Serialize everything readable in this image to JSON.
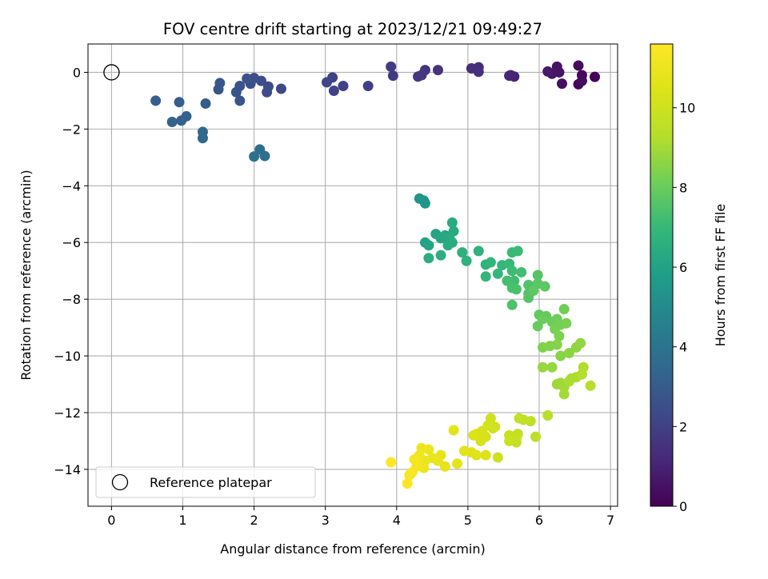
{
  "chart_data": {
    "type": "scatter",
    "title": "FOV centre drift starting at 2023/12/21 09:49:27",
    "xlabel": "Angular distance from reference (arcmin)",
    "ylabel": "Rotation from reference (arcmin)",
    "xlim": [
      -0.33,
      7.1
    ],
    "ylim": [
      -15.3,
      1.0
    ],
    "xticks": [
      0,
      1,
      2,
      3,
      4,
      5,
      6,
      7
    ],
    "yticks": [
      -14,
      -12,
      -10,
      -8,
      -6,
      -4,
      -2,
      0
    ],
    "grid": true,
    "colormap": "viridis",
    "colorbar": {
      "label": "Hours from first FF file",
      "range": [
        0,
        11.6
      ],
      "ticks": [
        0,
        2,
        4,
        6,
        8,
        10
      ]
    },
    "legend": {
      "placement": "lower-left",
      "entries": [
        "Reference platepar"
      ]
    },
    "reference_point": {
      "x": 0,
      "y": 0
    },
    "points": [
      [
        6.78,
        -0.16,
        0.1
      ],
      [
        6.6,
        -0.1,
        0.2
      ],
      [
        6.55,
        -0.42,
        0.25
      ],
      [
        6.55,
        0.24,
        0.3
      ],
      [
        6.6,
        -0.3,
        0.35
      ],
      [
        6.32,
        -0.4,
        0.45
      ],
      [
        6.25,
        0.2,
        0.5
      ],
      [
        6.28,
        0.0,
        0.55
      ],
      [
        6.18,
        -0.05,
        0.6
      ],
      [
        6.12,
        0.03,
        0.7
      ],
      [
        5.65,
        -0.15,
        1.0
      ],
      [
        5.58,
        -0.12,
        1.05
      ],
      [
        5.6,
        -0.1,
        1.1
      ],
      [
        5.15,
        0.18,
        1.3
      ],
      [
        5.05,
        0.14,
        1.35
      ],
      [
        5.15,
        0.02,
        1.4
      ],
      [
        4.58,
        0.08,
        1.55
      ],
      [
        4.4,
        0.08,
        1.6
      ],
      [
        4.35,
        -0.1,
        1.65
      ],
      [
        4.3,
        -0.15,
        1.7
      ],
      [
        3.95,
        -0.12,
        1.8
      ],
      [
        3.92,
        0.2,
        1.85
      ],
      [
        3.6,
        -0.48,
        1.95
      ],
      [
        3.25,
        -0.48,
        2.0
      ],
      [
        3.1,
        -0.18,
        2.05
      ],
      [
        3.12,
        -0.65,
        2.1
      ],
      [
        3.02,
        -0.35,
        2.15
      ],
      [
        2.38,
        -0.58,
        2.3
      ],
      [
        2.2,
        -0.5,
        2.35
      ],
      [
        2.18,
        -0.7,
        2.4
      ],
      [
        2.1,
        -0.3,
        2.45
      ],
      [
        2.0,
        -0.2,
        2.5
      ],
      [
        1.95,
        -0.4,
        2.55
      ],
      [
        1.9,
        -0.22,
        2.6
      ],
      [
        1.8,
        -0.48,
        2.65
      ],
      [
        1.75,
        -0.7,
        2.7
      ],
      [
        1.8,
        -1.0,
        2.75
      ],
      [
        1.5,
        -0.6,
        2.8
      ],
      [
        1.52,
        -0.38,
        2.85
      ],
      [
        1.32,
        -1.1,
        3.0
      ],
      [
        0.95,
        -1.05,
        3.1
      ],
      [
        0.62,
        -1.0,
        3.15
      ],
      [
        0.98,
        -1.7,
        3.2
      ],
      [
        1.05,
        -1.55,
        3.25
      ],
      [
        0.85,
        -1.75,
        3.3
      ],
      [
        1.28,
        -2.1,
        3.5
      ],
      [
        1.28,
        -2.32,
        3.55
      ],
      [
        2.08,
        -2.72,
        3.7
      ],
      [
        2.15,
        -2.95,
        3.75
      ],
      [
        2.0,
        -2.97,
        3.8
      ],
      [
        4.32,
        -4.45,
        5.4
      ],
      [
        4.38,
        -4.52,
        5.45
      ],
      [
        4.4,
        -4.62,
        5.5
      ],
      [
        4.4,
        -6.0,
        6.0
      ],
      [
        4.45,
        -6.1,
        6.05
      ],
      [
        4.55,
        -5.7,
        6.1
      ],
      [
        4.62,
        -5.85,
        6.15
      ],
      [
        4.68,
        -5.75,
        6.2
      ],
      [
        4.75,
        -5.9,
        6.25
      ],
      [
        4.8,
        -5.6,
        6.3
      ],
      [
        4.78,
        -5.3,
        6.35
      ],
      [
        4.72,
        -6.1,
        6.4
      ],
      [
        4.78,
        -6.0,
        6.45
      ],
      [
        4.45,
        -6.55,
        6.5
      ],
      [
        4.62,
        -6.45,
        6.55
      ],
      [
        4.92,
        -6.35,
        6.6
      ],
      [
        4.98,
        -6.65,
        6.65
      ],
      [
        5.15,
        -6.3,
        6.7
      ],
      [
        5.25,
        -6.78,
        6.75
      ],
      [
        5.32,
        -6.7,
        6.8
      ],
      [
        5.25,
        -7.2,
        6.85
      ],
      [
        5.42,
        -7.1,
        6.9
      ],
      [
        5.48,
        -6.8,
        6.95
      ],
      [
        5.58,
        -6.75,
        7.0
      ],
      [
        5.62,
        -6.35,
        7.05
      ],
      [
        5.7,
        -6.3,
        7.1
      ],
      [
        5.62,
        -7.0,
        7.15
      ],
      [
        5.65,
        -7.35,
        7.2
      ],
      [
        5.75,
        -7.05,
        7.25
      ],
      [
        5.55,
        -7.35,
        7.3
      ],
      [
        5.62,
        -7.6,
        7.35
      ],
      [
        5.68,
        -7.65,
        7.4
      ],
      [
        5.62,
        -8.2,
        7.45
      ],
      [
        5.85,
        -7.5,
        7.5
      ],
      [
        5.85,
        -7.8,
        7.55
      ],
      [
        5.85,
        -7.95,
        7.6
      ],
      [
        5.98,
        -7.15,
        7.65
      ],
      [
        5.98,
        -7.45,
        7.7
      ],
      [
        6.08,
        -7.55,
        7.75
      ],
      [
        5.92,
        -7.7,
        7.8
      ],
      [
        6.0,
        -8.55,
        7.85
      ],
      [
        6.1,
        -8.6,
        7.9
      ],
      [
        5.98,
        -8.95,
        7.95
      ],
      [
        6.05,
        -8.7,
        8.0
      ],
      [
        6.18,
        -8.8,
        8.05
      ],
      [
        6.25,
        -8.7,
        8.1
      ],
      [
        6.35,
        -8.35,
        8.15
      ],
      [
        6.3,
        -8.9,
        8.2
      ],
      [
        6.22,
        -9.05,
        8.25
      ],
      [
        6.38,
        -8.85,
        8.3
      ],
      [
        6.28,
        -9.3,
        8.35
      ],
      [
        6.05,
        -9.7,
        8.4
      ],
      [
        6.15,
        -9.65,
        8.45
      ],
      [
        6.25,
        -9.6,
        8.5
      ],
      [
        6.3,
        -10.0,
        8.55
      ],
      [
        6.42,
        -9.9,
        8.6
      ],
      [
        6.52,
        -9.7,
        8.65
      ],
      [
        6.58,
        -9.55,
        8.7
      ],
      [
        6.18,
        -10.4,
        8.75
      ],
      [
        6.05,
        -10.4,
        8.8
      ],
      [
        6.25,
        -11.0,
        8.85
      ],
      [
        6.3,
        -10.95,
        8.9
      ],
      [
        6.35,
        -11.1,
        8.95
      ],
      [
        6.35,
        -11.35,
        9.0
      ],
      [
        6.45,
        -10.8,
        9.05
      ],
      [
        6.42,
        -10.9,
        9.1
      ],
      [
        6.52,
        -10.75,
        9.15
      ],
      [
        6.62,
        -10.4,
        9.2
      ],
      [
        6.6,
        -10.65,
        9.25
      ],
      [
        6.72,
        -11.05,
        9.3
      ],
      [
        6.12,
        -12.1,
        9.4
      ],
      [
        5.95,
        -12.85,
        9.5
      ],
      [
        5.88,
        -12.3,
        9.55
      ],
      [
        5.78,
        -12.25,
        9.6
      ],
      [
        5.72,
        -12.2,
        9.65
      ],
      [
        5.7,
        -12.75,
        9.7
      ],
      [
        5.68,
        -13.05,
        9.75
      ],
      [
        5.68,
        -12.9,
        9.8
      ],
      [
        5.58,
        -12.8,
        9.85
      ],
      [
        5.58,
        -13.0,
        9.9
      ],
      [
        5.42,
        -13.58,
        9.95
      ],
      [
        5.38,
        -12.5,
        10.0
      ],
      [
        5.32,
        -12.2,
        10.05
      ],
      [
        5.35,
        -12.55,
        10.1
      ],
      [
        5.28,
        -12.45,
        10.15
      ],
      [
        5.25,
        -12.85,
        10.2
      ],
      [
        5.2,
        -12.65,
        10.25
      ],
      [
        5.18,
        -13.0,
        10.3
      ],
      [
        5.12,
        -12.75,
        10.35
      ],
      [
        5.08,
        -12.8,
        10.4
      ],
      [
        5.25,
        -13.5,
        10.45
      ],
      [
        5.12,
        -13.5,
        10.5
      ],
      [
        5.05,
        -13.4,
        10.55
      ],
      [
        4.95,
        -13.35,
        10.6
      ],
      [
        4.8,
        -12.62,
        10.65
      ],
      [
        4.85,
        -13.8,
        10.7
      ],
      [
        4.68,
        -13.9,
        10.75
      ],
      [
        4.62,
        -13.5,
        10.8
      ],
      [
        4.58,
        -13.7,
        10.85
      ],
      [
        4.5,
        -13.6,
        10.9
      ],
      [
        4.45,
        -13.3,
        10.95
      ],
      [
        4.4,
        -13.7,
        11.0
      ],
      [
        4.38,
        -13.95,
        11.05
      ],
      [
        4.35,
        -13.25,
        11.1
      ],
      [
        4.32,
        -13.5,
        11.15
      ],
      [
        4.3,
        -13.7,
        11.2
      ],
      [
        4.28,
        -13.9,
        11.25
      ],
      [
        4.25,
        -13.65,
        11.3
      ],
      [
        4.22,
        -14.1,
        11.35
      ],
      [
        4.18,
        -14.2,
        11.4
      ],
      [
        4.15,
        -14.5,
        11.45
      ],
      [
        4.2,
        -14.15,
        11.5
      ],
      [
        3.92,
        -13.75,
        11.55
      ]
    ]
  }
}
